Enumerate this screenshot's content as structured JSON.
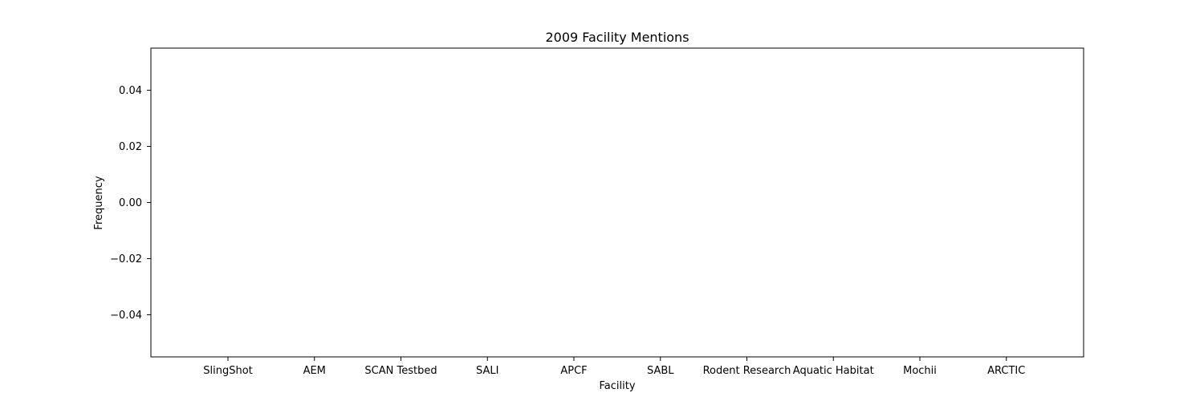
{
  "chart_data": {
    "type": "bar",
    "title": "2009 Facility Mentions",
    "xlabel": "Facility",
    "ylabel": "Frequency",
    "categories": [
      "SlingShot",
      "AEM",
      "SCAN Testbed",
      "SALI",
      "APCF",
      "SABL",
      "Rodent Research",
      "Aquatic Habitat",
      "Mochii",
      "ARCTIC"
    ],
    "values": [
      0,
      0,
      0,
      0,
      0,
      0,
      0,
      0,
      0,
      0
    ],
    "ylim": [
      -0.055,
      0.055
    ],
    "yticks": [
      -0.04,
      -0.02,
      0.0,
      0.02,
      0.04
    ],
    "ytick_labels": [
      "−0.04",
      "−0.02",
      "0.00",
      "0.02",
      "0.04"
    ],
    "grid": false,
    "legend": "none",
    "bar_color": "#1f77b4"
  }
}
